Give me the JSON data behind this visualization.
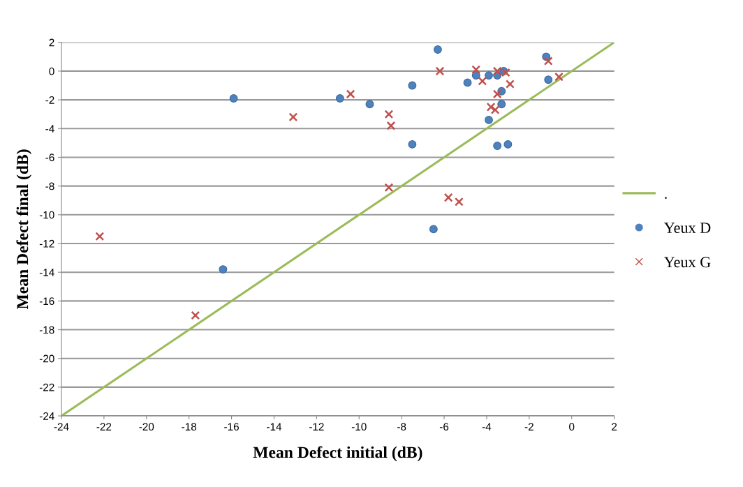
{
  "chart_data": {
    "type": "scatter",
    "xlabel": "Mean Defect initial (dB)",
    "ylabel": "Mean Defect final (dB)",
    "xlim": [
      -24,
      2
    ],
    "ylim": [
      -24,
      2
    ],
    "xticks": [
      -24,
      -22,
      -20,
      -18,
      -16,
      -14,
      -12,
      -10,
      -8,
      -6,
      -4,
      -2,
      0,
      2
    ],
    "yticks": [
      -24,
      -22,
      -20,
      -18,
      -16,
      -14,
      -12,
      -10,
      -8,
      -6,
      -4,
      -2,
      0,
      2
    ],
    "grid": "y",
    "legend": "right",
    "series": [
      {
        "name": ".",
        "type": "line",
        "color": "#9bbb59",
        "marker": "none",
        "x": [
          -24,
          2
        ],
        "values": [
          -24,
          2
        ]
      },
      {
        "name": "Yeux D",
        "color": "#4f81bd",
        "marker": "circle",
        "x": [
          -6.3,
          -1.2,
          -4.5,
          -3.9,
          -3.5,
          -3.2,
          -1.1,
          -7.5,
          -4.9,
          -3.3,
          -3.3,
          -3.9,
          -7.5,
          -3.5,
          -3.0,
          -10.9,
          -9.5,
          -6.5,
          -15.9,
          -16.4
        ],
        "values": [
          1.5,
          1.0,
          -0.3,
          -0.3,
          -0.3,
          0.0,
          -0.6,
          -1.0,
          -0.8,
          -1.4,
          -2.3,
          -3.4,
          -5.1,
          -5.2,
          -5.1,
          -1.9,
          -2.3,
          -11.0,
          -1.9,
          -13.8
        ]
      },
      {
        "name": "Yeux G",
        "color": "#c0504d",
        "marker": "cross",
        "x": [
          -6.2,
          -4.5,
          -4.2,
          -3.5,
          -3.1,
          -2.9,
          -3.5,
          -1.1,
          -0.6,
          -3.8,
          -3.6,
          -10.4,
          -8.6,
          -8.5,
          -8.6,
          -5.8,
          -5.3,
          -13.1,
          -22.2,
          -17.7
        ],
        "values": [
          0.0,
          0.1,
          -0.7,
          0.0,
          -0.1,
          -0.9,
          -1.6,
          0.7,
          -0.4,
          -2.5,
          -2.7,
          -1.6,
          -3.0,
          -3.8,
          -8.1,
          -8.8,
          -9.1,
          -3.2,
          -11.5,
          -17.0
        ]
      }
    ]
  }
}
